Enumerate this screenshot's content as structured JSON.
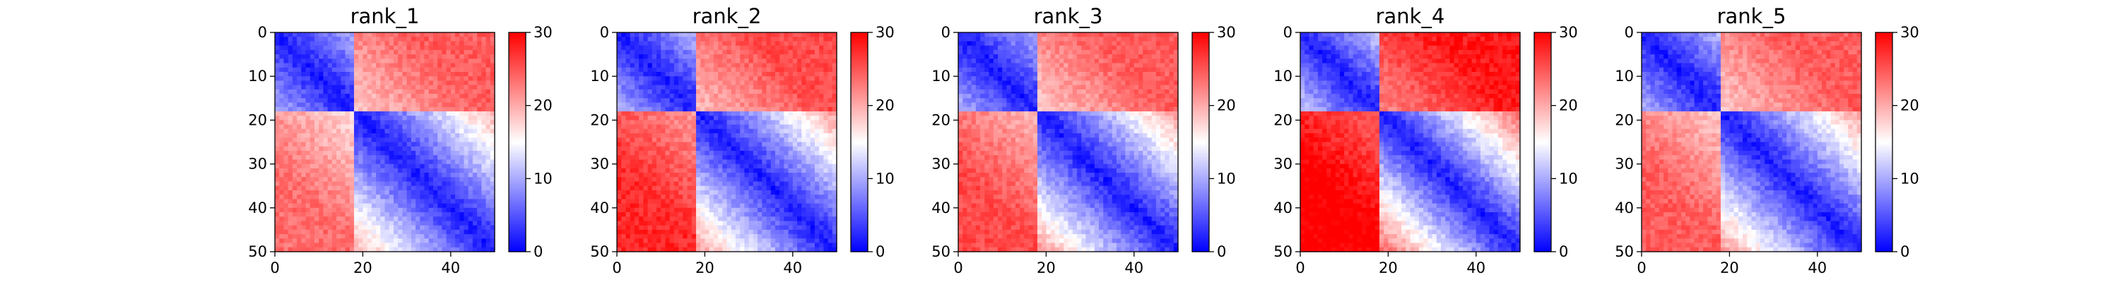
{
  "chart_data": [
    {
      "type": "heatmap",
      "title": "rank_1",
      "size": 50,
      "colormap": "bwr",
      "vmin": 0,
      "vmax": 30,
      "x_ticks": [
        0,
        20,
        40
      ],
      "y_ticks": [
        0,
        10,
        20,
        30,
        40,
        50
      ],
      "colorbar_ticks": [
        0,
        10,
        20,
        30
      ],
      "domains": [
        {
          "start": 0,
          "end": 18
        },
        {
          "start": 18,
          "end": 50
        }
      ],
      "intra_domain_level": 0.9,
      "inter_domain_upper": 22,
      "inter_domain_lower": 21,
      "x_label": "",
      "y_label": ""
    },
    {
      "type": "heatmap",
      "title": "rank_2",
      "size": 50,
      "colormap": "bwr",
      "vmin": 0,
      "vmax": 30,
      "x_ticks": [
        0,
        20,
        40
      ],
      "y_ticks": [
        0,
        10,
        20,
        30,
        40,
        50
      ],
      "colorbar_ticks": [
        0,
        10,
        20,
        30
      ],
      "domains": [
        {
          "start": 0,
          "end": 18
        },
        {
          "start": 18,
          "end": 50
        }
      ],
      "intra_domain_level": 0.95,
      "inter_domain_upper": 23,
      "inter_domain_lower": 25,
      "x_label": "",
      "y_label": ""
    },
    {
      "type": "heatmap",
      "title": "rank_3",
      "size": 50,
      "colormap": "bwr",
      "vmin": 0,
      "vmax": 30,
      "x_ticks": [
        0,
        20,
        40
      ],
      "y_ticks": [
        0,
        10,
        20,
        30,
        40,
        50
      ],
      "colorbar_ticks": [
        0,
        10,
        20,
        30
      ],
      "domains": [
        {
          "start": 0,
          "end": 18
        },
        {
          "start": 18,
          "end": 50
        }
      ],
      "intra_domain_level": 0.95,
      "inter_domain_upper": 22,
      "inter_domain_lower": 23,
      "x_label": "",
      "y_label": ""
    },
    {
      "type": "heatmap",
      "title": "rank_4",
      "size": 50,
      "colormap": "bwr",
      "vmin": 0,
      "vmax": 30,
      "x_ticks": [
        0,
        20,
        40
      ],
      "y_ticks": [
        0,
        10,
        20,
        30,
        40,
        50
      ],
      "colorbar_ticks": [
        0,
        10,
        20,
        30
      ],
      "domains": [
        {
          "start": 0,
          "end": 18
        },
        {
          "start": 18,
          "end": 50
        }
      ],
      "intra_domain_level": 1.1,
      "inter_domain_upper": 26,
      "inter_domain_lower": 28,
      "x_label": "",
      "y_label": ""
    },
    {
      "type": "heatmap",
      "title": "rank_5",
      "size": 50,
      "colormap": "bwr",
      "vmin": 0,
      "vmax": 30,
      "x_ticks": [
        0,
        20,
        40
      ],
      "y_ticks": [
        0,
        10,
        20,
        30,
        40,
        50
      ],
      "colorbar_ticks": [
        0,
        10,
        20,
        30
      ],
      "domains": [
        {
          "start": 0,
          "end": 18
        },
        {
          "start": 18,
          "end": 50
        }
      ],
      "intra_domain_level": 0.95,
      "inter_domain_upper": 22,
      "inter_domain_lower": 22,
      "x_label": "",
      "y_label": ""
    }
  ],
  "colors": {
    "low": "#0000ff",
    "mid": "#ffffff",
    "high": "#ff0000",
    "axis": "#000000"
  }
}
